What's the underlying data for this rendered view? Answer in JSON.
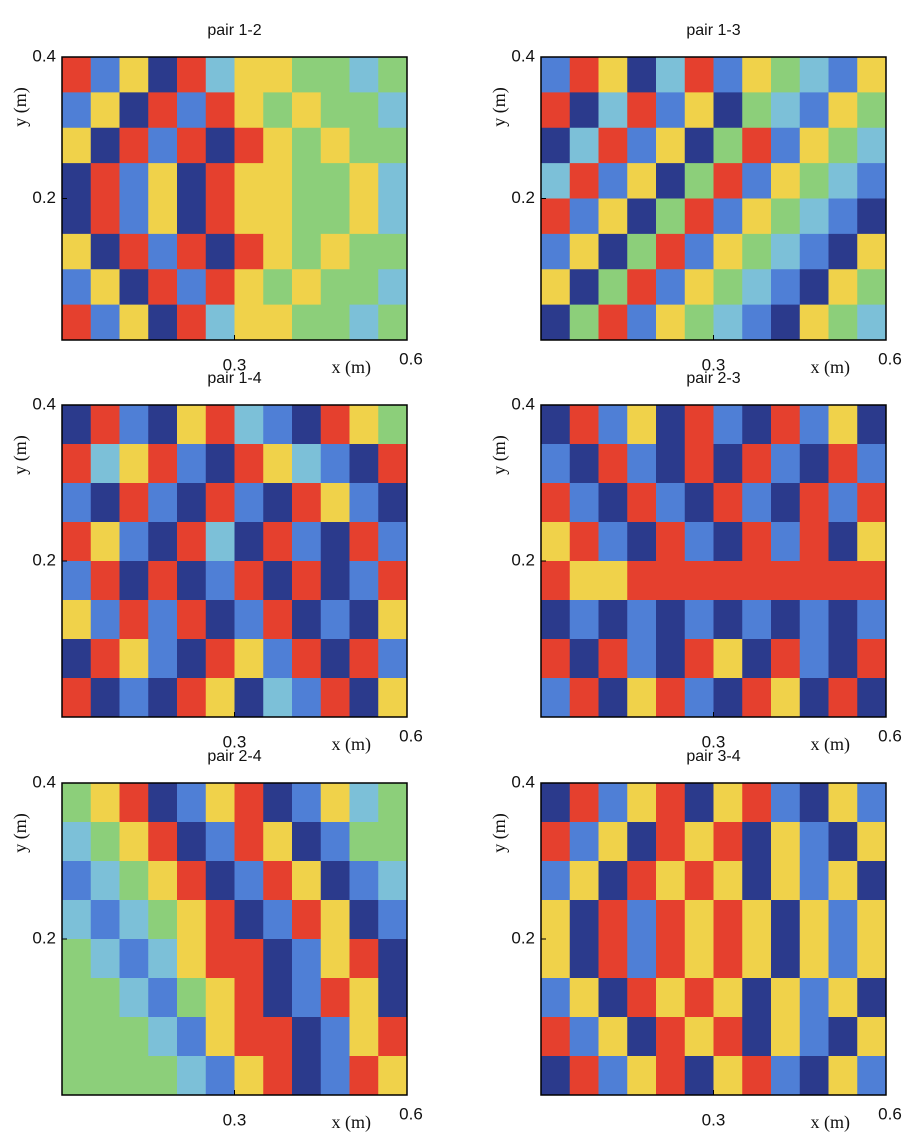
{
  "chart_data": [
    {
      "type": "heatmap",
      "title": "pair 1-2",
      "xlabel": "x (m)",
      "ylabel": "y (m)",
      "xlim": [
        0,
        0.6
      ],
      "ylim": [
        0,
        0.4
      ],
      "xticks": [
        0.3,
        0.6
      ],
      "yticks": [
        0.2,
        0.4
      ],
      "clim": [
        0,
        5
      ],
      "colors": [
        "#2b3a8c",
        "#4f7fd6",
        "#7cc0d8",
        "#8ccf7a",
        "#f0d24a",
        "#e5402e"
      ],
      "z": [
        [
          5,
          1,
          4,
          0,
          5,
          2,
          4,
          4,
          3,
          3,
          2,
          3
        ],
        [
          1,
          4,
          0,
          5,
          1,
          5,
          4,
          3,
          4,
          3,
          3,
          2
        ],
        [
          4,
          0,
          5,
          1,
          5,
          0,
          5,
          4,
          3,
          4,
          3,
          3
        ],
        [
          0,
          5,
          1,
          4,
          0,
          5,
          4,
          4,
          3,
          3,
          4,
          2
        ],
        [
          0,
          5,
          1,
          4,
          0,
          5,
          4,
          4,
          3,
          3,
          4,
          2
        ],
        [
          4,
          0,
          5,
          1,
          5,
          0,
          5,
          4,
          3,
          4,
          3,
          3
        ],
        [
          1,
          4,
          0,
          5,
          1,
          5,
          4,
          3,
          4,
          3,
          3,
          2
        ],
        [
          5,
          1,
          4,
          0,
          5,
          2,
          4,
          4,
          3,
          3,
          2,
          3
        ]
      ]
    },
    {
      "type": "heatmap",
      "title": "pair 1-3",
      "xlabel": "x (m)",
      "ylabel": "y (m)",
      "xlim": [
        0,
        0.6
      ],
      "ylim": [
        0,
        0.4
      ],
      "xticks": [
        0.3,
        0.6
      ],
      "yticks": [
        0.2,
        0.4
      ],
      "clim": [
        0,
        5
      ],
      "colors": [
        "#2b3a8c",
        "#4f7fd6",
        "#7cc0d8",
        "#8ccf7a",
        "#f0d24a",
        "#e5402e"
      ],
      "z": [
        [
          1,
          5,
          4,
          0,
          2,
          5,
          1,
          4,
          3,
          2,
          1,
          4
        ],
        [
          5,
          0,
          2,
          5,
          1,
          4,
          0,
          3,
          2,
          1,
          4,
          3
        ],
        [
          0,
          2,
          5,
          1,
          4,
          0,
          3,
          5,
          1,
          4,
          3,
          2
        ],
        [
          2,
          5,
          1,
          4,
          0,
          3,
          5,
          1,
          4,
          3,
          2,
          1
        ],
        [
          5,
          1,
          4,
          0,
          3,
          5,
          1,
          4,
          3,
          2,
          1,
          0
        ],
        [
          1,
          4,
          0,
          3,
          5,
          1,
          4,
          3,
          2,
          1,
          0,
          4
        ],
        [
          4,
          0,
          3,
          5,
          1,
          4,
          3,
          2,
          1,
          0,
          4,
          3
        ],
        [
          0,
          3,
          5,
          1,
          4,
          3,
          2,
          1,
          0,
          4,
          3,
          2
        ]
      ]
    },
    {
      "type": "heatmap",
      "title": "pair 1-4",
      "xlabel": "x (m)",
      "ylabel": "y (m)",
      "xlim": [
        0,
        0.6
      ],
      "ylim": [
        0,
        0.4
      ],
      "xticks": [
        0.3,
        0.6
      ],
      "yticks": [
        0.2,
        0.4
      ],
      "clim": [
        0,
        5
      ],
      "colors": [
        "#2b3a8c",
        "#4f7fd6",
        "#7cc0d8",
        "#8ccf7a",
        "#f0d24a",
        "#e5402e"
      ],
      "z": [
        [
          0,
          5,
          1,
          0,
          4,
          5,
          2,
          1,
          0,
          5,
          4,
          3
        ],
        [
          5,
          2,
          4,
          5,
          1,
          0,
          5,
          4,
          2,
          1,
          0,
          5
        ],
        [
          1,
          0,
          5,
          1,
          0,
          5,
          1,
          0,
          5,
          4,
          1,
          0
        ],
        [
          5,
          4,
          1,
          0,
          5,
          2,
          0,
          5,
          1,
          0,
          5,
          1
        ],
        [
          1,
          5,
          0,
          5,
          0,
          1,
          5,
          0,
          5,
          0,
          1,
          5
        ],
        [
          4,
          1,
          5,
          1,
          5,
          0,
          1,
          5,
          0,
          1,
          0,
          4
        ],
        [
          0,
          5,
          4,
          1,
          0,
          5,
          4,
          1,
          5,
          0,
          5,
          1
        ],
        [
          5,
          0,
          1,
          0,
          5,
          4,
          0,
          2,
          1,
          5,
          0,
          4
        ]
      ]
    },
    {
      "type": "heatmap",
      "title": "pair 2-3",
      "xlabel": "x (m)",
      "ylabel": "y (m)",
      "xlim": [
        0,
        0.6
      ],
      "ylim": [
        0,
        0.4
      ],
      "xticks": [
        0.3,
        0.6
      ],
      "yticks": [
        0.2,
        0.4
      ],
      "clim": [
        0,
        5
      ],
      "colors": [
        "#2b3a8c",
        "#4f7fd6",
        "#7cc0d8",
        "#8ccf7a",
        "#f0d24a",
        "#e5402e"
      ],
      "z": [
        [
          0,
          5,
          1,
          4,
          0,
          5,
          1,
          0,
          5,
          1,
          4,
          0
        ],
        [
          1,
          0,
          5,
          1,
          0,
          5,
          0,
          5,
          1,
          0,
          5,
          1
        ],
        [
          5,
          1,
          0,
          5,
          1,
          0,
          5,
          1,
          0,
          5,
          1,
          5
        ],
        [
          4,
          5,
          1,
          0,
          5,
          1,
          0,
          5,
          1,
          5,
          0,
          4
        ],
        [
          5,
          4,
          4,
          5,
          5,
          5,
          5,
          5,
          5,
          5,
          5,
          5
        ],
        [
          0,
          1,
          0,
          1,
          0,
          1,
          0,
          1,
          0,
          1,
          0,
          1
        ],
        [
          5,
          0,
          5,
          1,
          0,
          5,
          4,
          0,
          5,
          1,
          0,
          5
        ],
        [
          1,
          5,
          0,
          4,
          5,
          1,
          0,
          5,
          4,
          0,
          5,
          0
        ]
      ]
    },
    {
      "type": "heatmap",
      "title": "pair 2-4",
      "xlabel": "x (m)",
      "ylabel": "y (m)",
      "xlim": [
        0,
        0.6
      ],
      "ylim": [
        0,
        0.4
      ],
      "xticks": [
        0.3,
        0.6
      ],
      "yticks": [
        0.2,
        0.4
      ],
      "clim": [
        0,
        5
      ],
      "colors": [
        "#2b3a8c",
        "#4f7fd6",
        "#7cc0d8",
        "#8ccf7a",
        "#f0d24a",
        "#e5402e"
      ],
      "z": [
        [
          3,
          4,
          5,
          0,
          1,
          4,
          5,
          0,
          1,
          4,
          2,
          3
        ],
        [
          2,
          3,
          4,
          5,
          0,
          1,
          5,
          4,
          0,
          1,
          3,
          3
        ],
        [
          1,
          2,
          3,
          4,
          5,
          0,
          1,
          5,
          4,
          0,
          1,
          2
        ],
        [
          2,
          1,
          2,
          3,
          4,
          5,
          0,
          1,
          5,
          4,
          0,
          1
        ],
        [
          3,
          2,
          1,
          2,
          4,
          5,
          5,
          0,
          1,
          4,
          5,
          0
        ],
        [
          3,
          3,
          2,
          1,
          3,
          4,
          5,
          0,
          1,
          5,
          4,
          0
        ],
        [
          3,
          3,
          3,
          2,
          1,
          4,
          5,
          5,
          0,
          1,
          4,
          5
        ],
        [
          3,
          3,
          3,
          3,
          2,
          1,
          4,
          5,
          0,
          1,
          5,
          4
        ]
      ]
    },
    {
      "type": "heatmap",
      "title": "pair 3-4",
      "xlabel": "x (m)",
      "ylabel": "y (m)",
      "xlim": [
        0,
        0.6
      ],
      "ylim": [
        0,
        0.4
      ],
      "xticks": [
        0.3,
        0.6
      ],
      "yticks": [
        0.2,
        0.4
      ],
      "clim": [
        0,
        5
      ],
      "colors": [
        "#2b3a8c",
        "#4f7fd6",
        "#7cc0d8",
        "#8ccf7a",
        "#f0d24a",
        "#e5402e"
      ],
      "z": [
        [
          0,
          5,
          1,
          4,
          5,
          0,
          4,
          5,
          1,
          0,
          4,
          1
        ],
        [
          5,
          1,
          4,
          0,
          5,
          4,
          5,
          0,
          4,
          1,
          0,
          4
        ],
        [
          1,
          4,
          0,
          5,
          4,
          5,
          4,
          0,
          4,
          1,
          4,
          0
        ],
        [
          4,
          0,
          5,
          1,
          5,
          4,
          5,
          4,
          0,
          4,
          1,
          4
        ],
        [
          4,
          0,
          5,
          1,
          5,
          4,
          5,
          4,
          0,
          4,
          1,
          4
        ],
        [
          1,
          4,
          0,
          5,
          4,
          5,
          4,
          0,
          4,
          1,
          4,
          0
        ],
        [
          5,
          1,
          4,
          0,
          5,
          4,
          5,
          0,
          4,
          1,
          0,
          4
        ],
        [
          0,
          5,
          1,
          4,
          5,
          0,
          4,
          5,
          1,
          0,
          4,
          1
        ]
      ]
    }
  ]
}
